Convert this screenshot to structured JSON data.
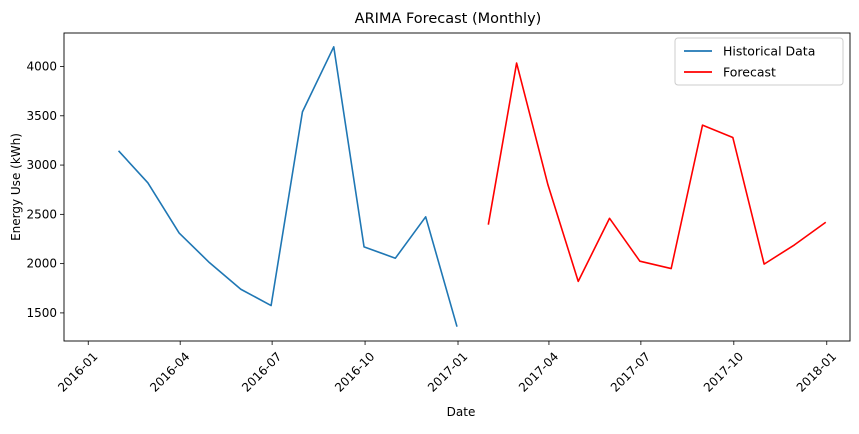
{
  "chart_data": {
    "type": "line",
    "title": "ARIMA Forecast (Monthly)",
    "xlabel": "Date",
    "ylabel": "Energy Use (kWh)",
    "x_ticks": [
      "2016-01",
      "2016-04",
      "2016-07",
      "2016-10",
      "2017-01",
      "2017-04",
      "2017-07",
      "2017-10",
      "2018-01"
    ],
    "y_ticks": [
      1500,
      2000,
      2500,
      3000,
      3500,
      4000
    ],
    "ylim": [
      1215,
      4340
    ],
    "xlim": [
      "2015-12-08",
      "2018-01-24"
    ],
    "grid": false,
    "legend_position": "top-right",
    "series": [
      {
        "name": "Historical Data",
        "color": "#1f77b4",
        "points": [
          {
            "x": "2016-01-31",
            "y": 3145
          },
          {
            "x": "2016-02-29",
            "y": 2820
          },
          {
            "x": "2016-03-31",
            "y": 2310
          },
          {
            "x": "2016-04-30",
            "y": 2010
          },
          {
            "x": "2016-05-31",
            "y": 1740
          },
          {
            "x": "2016-06-30",
            "y": 1575
          },
          {
            "x": "2016-07-31",
            "y": 3540
          },
          {
            "x": "2016-08-31",
            "y": 4200
          },
          {
            "x": "2016-09-30",
            "y": 2170
          },
          {
            "x": "2016-10-31",
            "y": 2055
          },
          {
            "x": "2016-11-30",
            "y": 2475
          },
          {
            "x": "2016-12-31",
            "y": 1360
          }
        ]
      },
      {
        "name": "Forecast",
        "color": "#ff0000",
        "points": [
          {
            "x": "2017-01-31",
            "y": 2395
          },
          {
            "x": "2017-02-28",
            "y": 4035
          },
          {
            "x": "2017-03-31",
            "y": 2800
          },
          {
            "x": "2017-04-30",
            "y": 1820
          },
          {
            "x": "2017-05-31",
            "y": 2460
          },
          {
            "x": "2017-06-30",
            "y": 2025
          },
          {
            "x": "2017-07-31",
            "y": 1950
          },
          {
            "x": "2017-08-31",
            "y": 3405
          },
          {
            "x": "2017-09-30",
            "y": 3280
          },
          {
            "x": "2017-10-31",
            "y": 1995
          },
          {
            "x": "2017-11-30",
            "y": 2190
          },
          {
            "x": "2017-12-31",
            "y": 2420
          }
        ]
      }
    ]
  }
}
